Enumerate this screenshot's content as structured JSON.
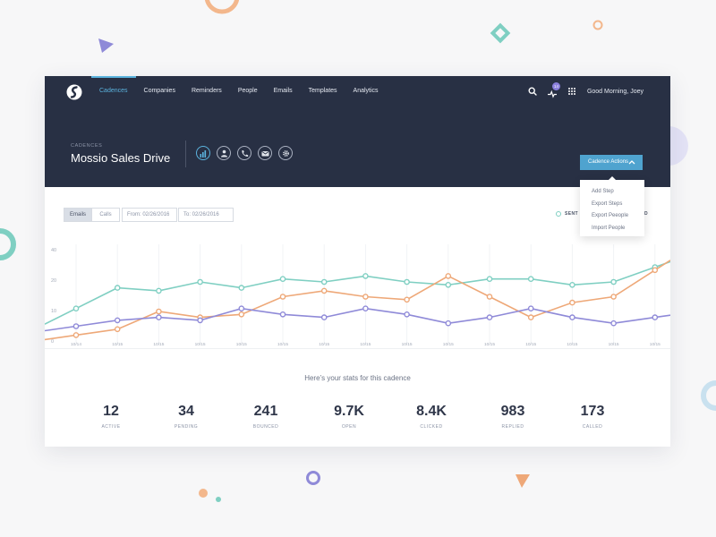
{
  "nav": {
    "items": [
      {
        "label": "Cadences",
        "active": true
      },
      {
        "label": "Companies"
      },
      {
        "label": "Reminders"
      },
      {
        "label": "People"
      },
      {
        "label": "Emails"
      },
      {
        "label": "Templates"
      },
      {
        "label": "Analytics"
      }
    ],
    "notification_count": "14",
    "greeting": "Good Morning, Joey"
  },
  "header": {
    "breadcrumb": "CADENCES",
    "title": "Mossio Sales Drive",
    "icons": [
      "bar-chart-icon",
      "people-icon",
      "phone-icon",
      "mail-icon",
      "gear-icon"
    ],
    "cadence_actions_label": "Cadence Actions"
  },
  "dropdown": {
    "items": [
      "Add Step",
      "Export Steps",
      "Export Peeople",
      "Import People"
    ]
  },
  "filters": {
    "toggle": [
      "Emails",
      "Calls"
    ],
    "from": "From: 02/26/2016",
    "to": "To: 02/26/2016"
  },
  "legend": {
    "sent": "SENT",
    "partial": "D"
  },
  "chart_data": {
    "type": "line",
    "x": [
      "10/14",
      "10/15",
      "10/15",
      "10/15",
      "10/15",
      "10/15",
      "10/15",
      "10/15",
      "10/15",
      "10/15",
      "10/15",
      "10/15",
      "10/15",
      "10/15",
      "10/15"
    ],
    "yticks": [
      "0",
      "10",
      "20",
      "40"
    ],
    "series": [
      {
        "name": "SENT",
        "color": "#7fcfc2",
        "values": [
          11,
          18,
          17,
          20,
          18,
          21,
          20,
          22,
          20,
          19,
          21,
          21,
          19,
          20,
          25
        ]
      },
      {
        "name": "",
        "color": "#eea878",
        "values": [
          2,
          4,
          10,
          8,
          9,
          15,
          17,
          15,
          14,
          22,
          15,
          8,
          13,
          15,
          24
        ]
      },
      {
        "name": "",
        "color": "#8f8ad8",
        "values": [
          5,
          7,
          8,
          7,
          11,
          9,
          8,
          11,
          9,
          6,
          8,
          11,
          8,
          6,
          8
        ]
      }
    ]
  },
  "stats": {
    "heading": "Here’s your stats for this cadence",
    "items": [
      {
        "value": "12",
        "label": "ACTIVE"
      },
      {
        "value": "34",
        "label": "PENDING"
      },
      {
        "value": "241",
        "label": "BOUNCED"
      },
      {
        "value": "9.7K",
        "label": "OPEN"
      },
      {
        "value": "8.4K",
        "label": "CLICKED"
      },
      {
        "value": "983",
        "label": "REPLIED"
      },
      {
        "value": "173",
        "label": "CALLED"
      }
    ]
  }
}
